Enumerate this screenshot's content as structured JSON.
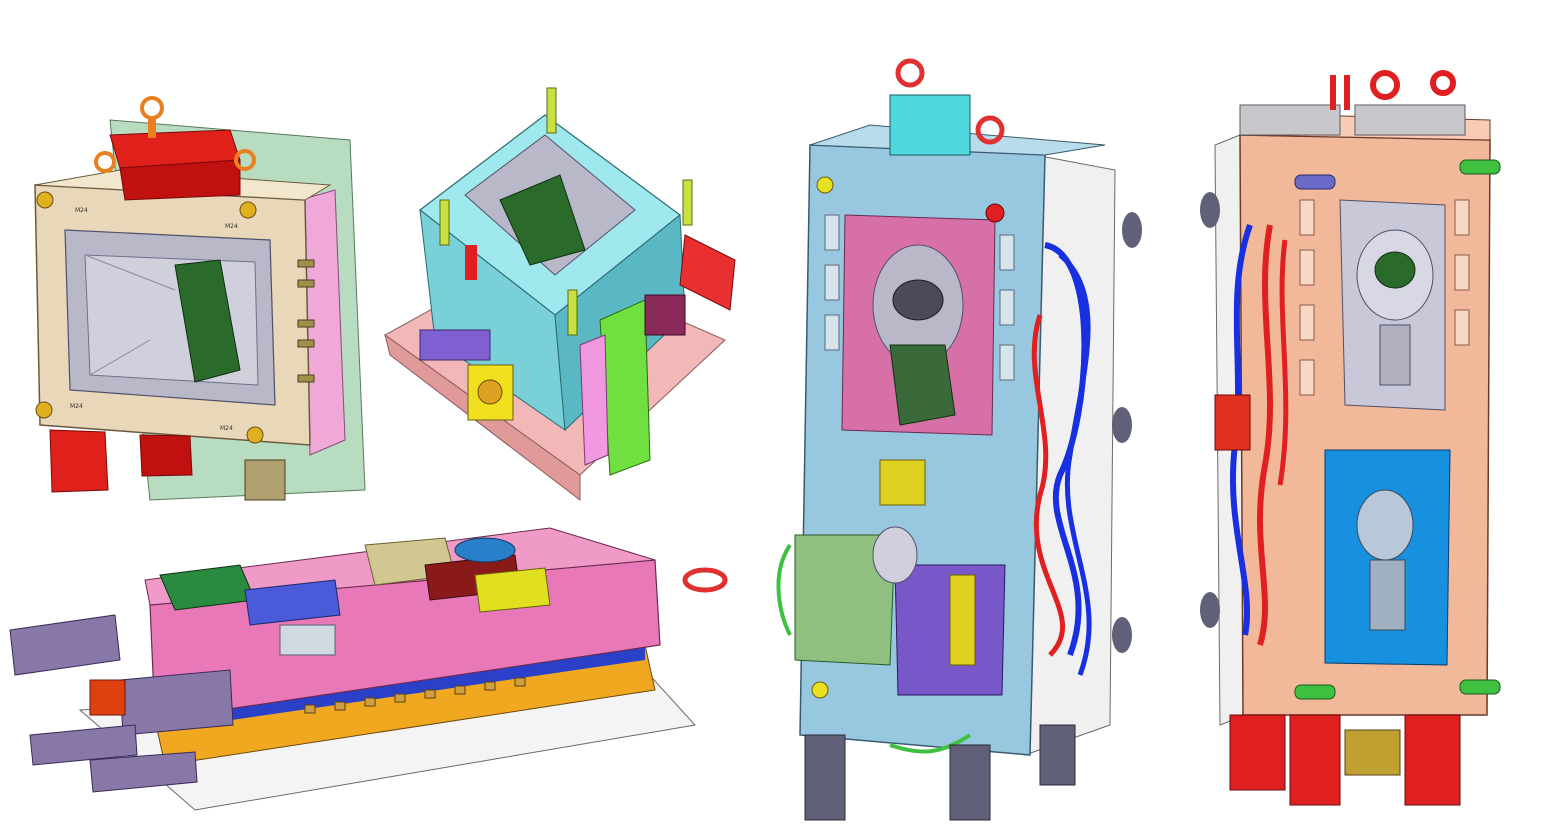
{
  "gallery": {
    "background": "#ffffff",
    "items": [
      {
        "id": "mold-1",
        "palette": {
          "plate": "#e8d7b8",
          "top": "#e0201a",
          "side": "#f0a8d8",
          "back": "#b8dcc0",
          "cavity": "#b8b8c8",
          "insert": "#2a6a2a"
        }
      },
      {
        "id": "mold-2",
        "palette": {
          "top": "#9ee8ee",
          "base": "#f2b8b8",
          "insert": "#2a6a2a",
          "slide": "#70e040",
          "block": "#e83030",
          "pin": "#c8e040"
        }
      },
      {
        "id": "mold-3",
        "palette": {
          "top": "#e878b8",
          "base": "#f0a820",
          "plate": "#f4f4f4",
          "bar": "#8878a8"
        }
      },
      {
        "id": "mold-4",
        "palette": {
          "plate": "#98c8e0",
          "cavity": "#d870a8",
          "core": "#7858c8",
          "hose": "#1830e0",
          "hose2": "#e02020",
          "leg": "#606078"
        }
      },
      {
        "id": "mold-5",
        "palette": {
          "plate": "#f2b89a",
          "core": "#1890e0",
          "hose": "#1830e0",
          "hose2": "#e02020",
          "leg": "#e02020",
          "pin": "#40c040"
        }
      }
    ],
    "label_marks": [
      "M24",
      "M24",
      "M24",
      "M24"
    ]
  }
}
